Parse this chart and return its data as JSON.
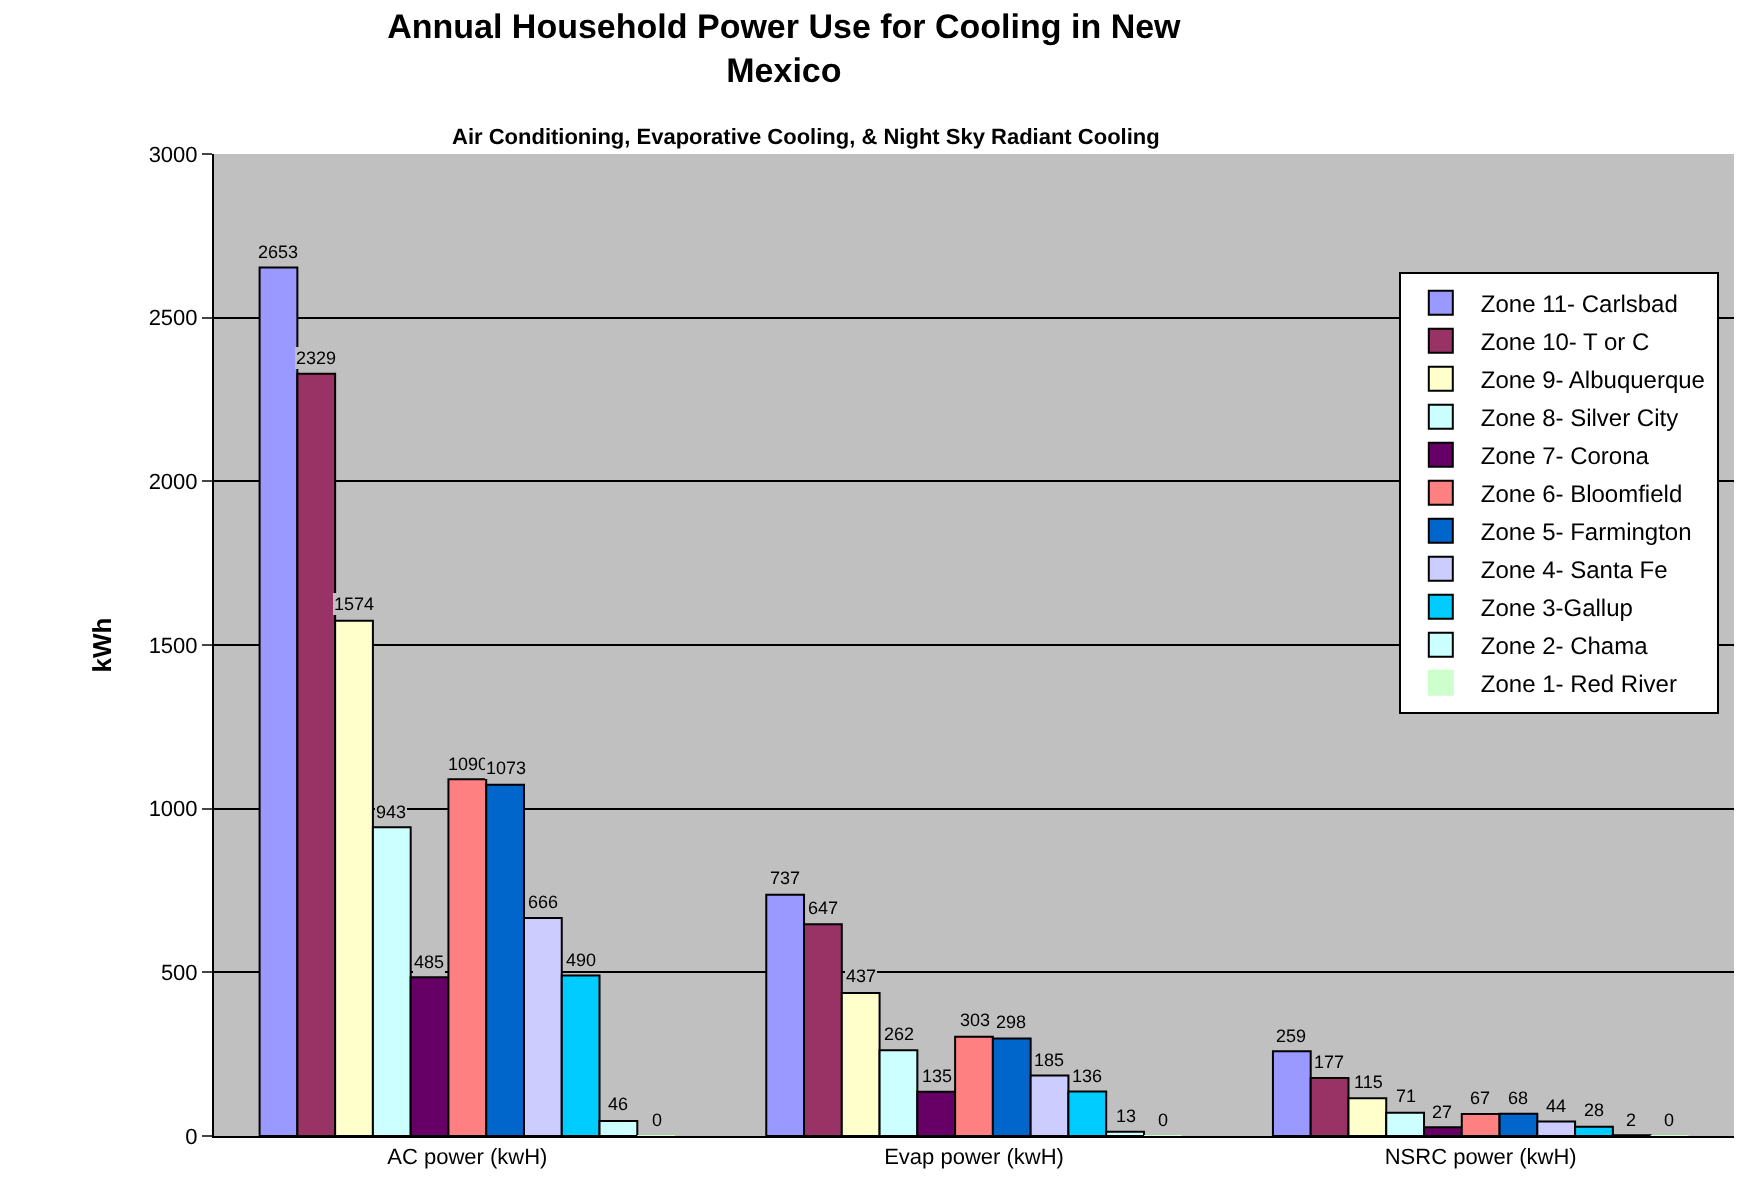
{
  "chart_data": {
    "type": "bar",
    "title": "Annual Household Power Use for Cooling in New Mexico",
    "subtitle": "Air Conditioning, Evaporative Cooling, & Night Sky Radiant Cooling",
    "ylabel": "kWh",
    "categories": [
      "AC power (kwH)",
      "Evap power (kwH)",
      "NSRC power (kwH)"
    ],
    "series": [
      {
        "name": "Zone 11- Carlsbad",
        "color": "#9999ff",
        "values": [
          2653,
          737,
          259
        ]
      },
      {
        "name": "Zone 10- T or C",
        "color": "#993366",
        "values": [
          2329,
          647,
          177
        ]
      },
      {
        "name": "Zone 9- Albuquerque",
        "color": "#ffffcc",
        "values": [
          1574,
          437,
          115
        ]
      },
      {
        "name": "Zone 8- Silver City",
        "color": "#ccffff",
        "values": [
          943,
          262,
          71
        ]
      },
      {
        "name": "Zone 7- Corona",
        "color": "#660066",
        "values": [
          485,
          135,
          27
        ]
      },
      {
        "name": "Zone 6- Bloomfield",
        "color": "#ff8080",
        "values": [
          1090,
          303,
          67
        ]
      },
      {
        "name": "Zone 5- Farmington",
        "color": "#0066cc",
        "values": [
          1073,
          298,
          68
        ]
      },
      {
        "name": "Zone 4- Santa Fe",
        "color": "#ccccff",
        "values": [
          666,
          185,
          44
        ]
      },
      {
        "name": "Zone 3-Gallup",
        "color": "#00ccff",
        "values": [
          490,
          136,
          28
        ]
      },
      {
        "name": "Zone 2- Chama",
        "color": "#ccffff",
        "values": [
          46,
          13,
          2
        ]
      },
      {
        "name": "Zone 1- Red River",
        "color": "#ccffcc",
        "values": [
          0,
          0,
          0
        ]
      }
    ],
    "ylim": [
      0,
      3000
    ],
    "yticks": [
      0,
      500,
      1000,
      1500,
      2000,
      2500,
      3000
    ],
    "grid": "y",
    "legend": "top right",
    "data_labels": true
  }
}
